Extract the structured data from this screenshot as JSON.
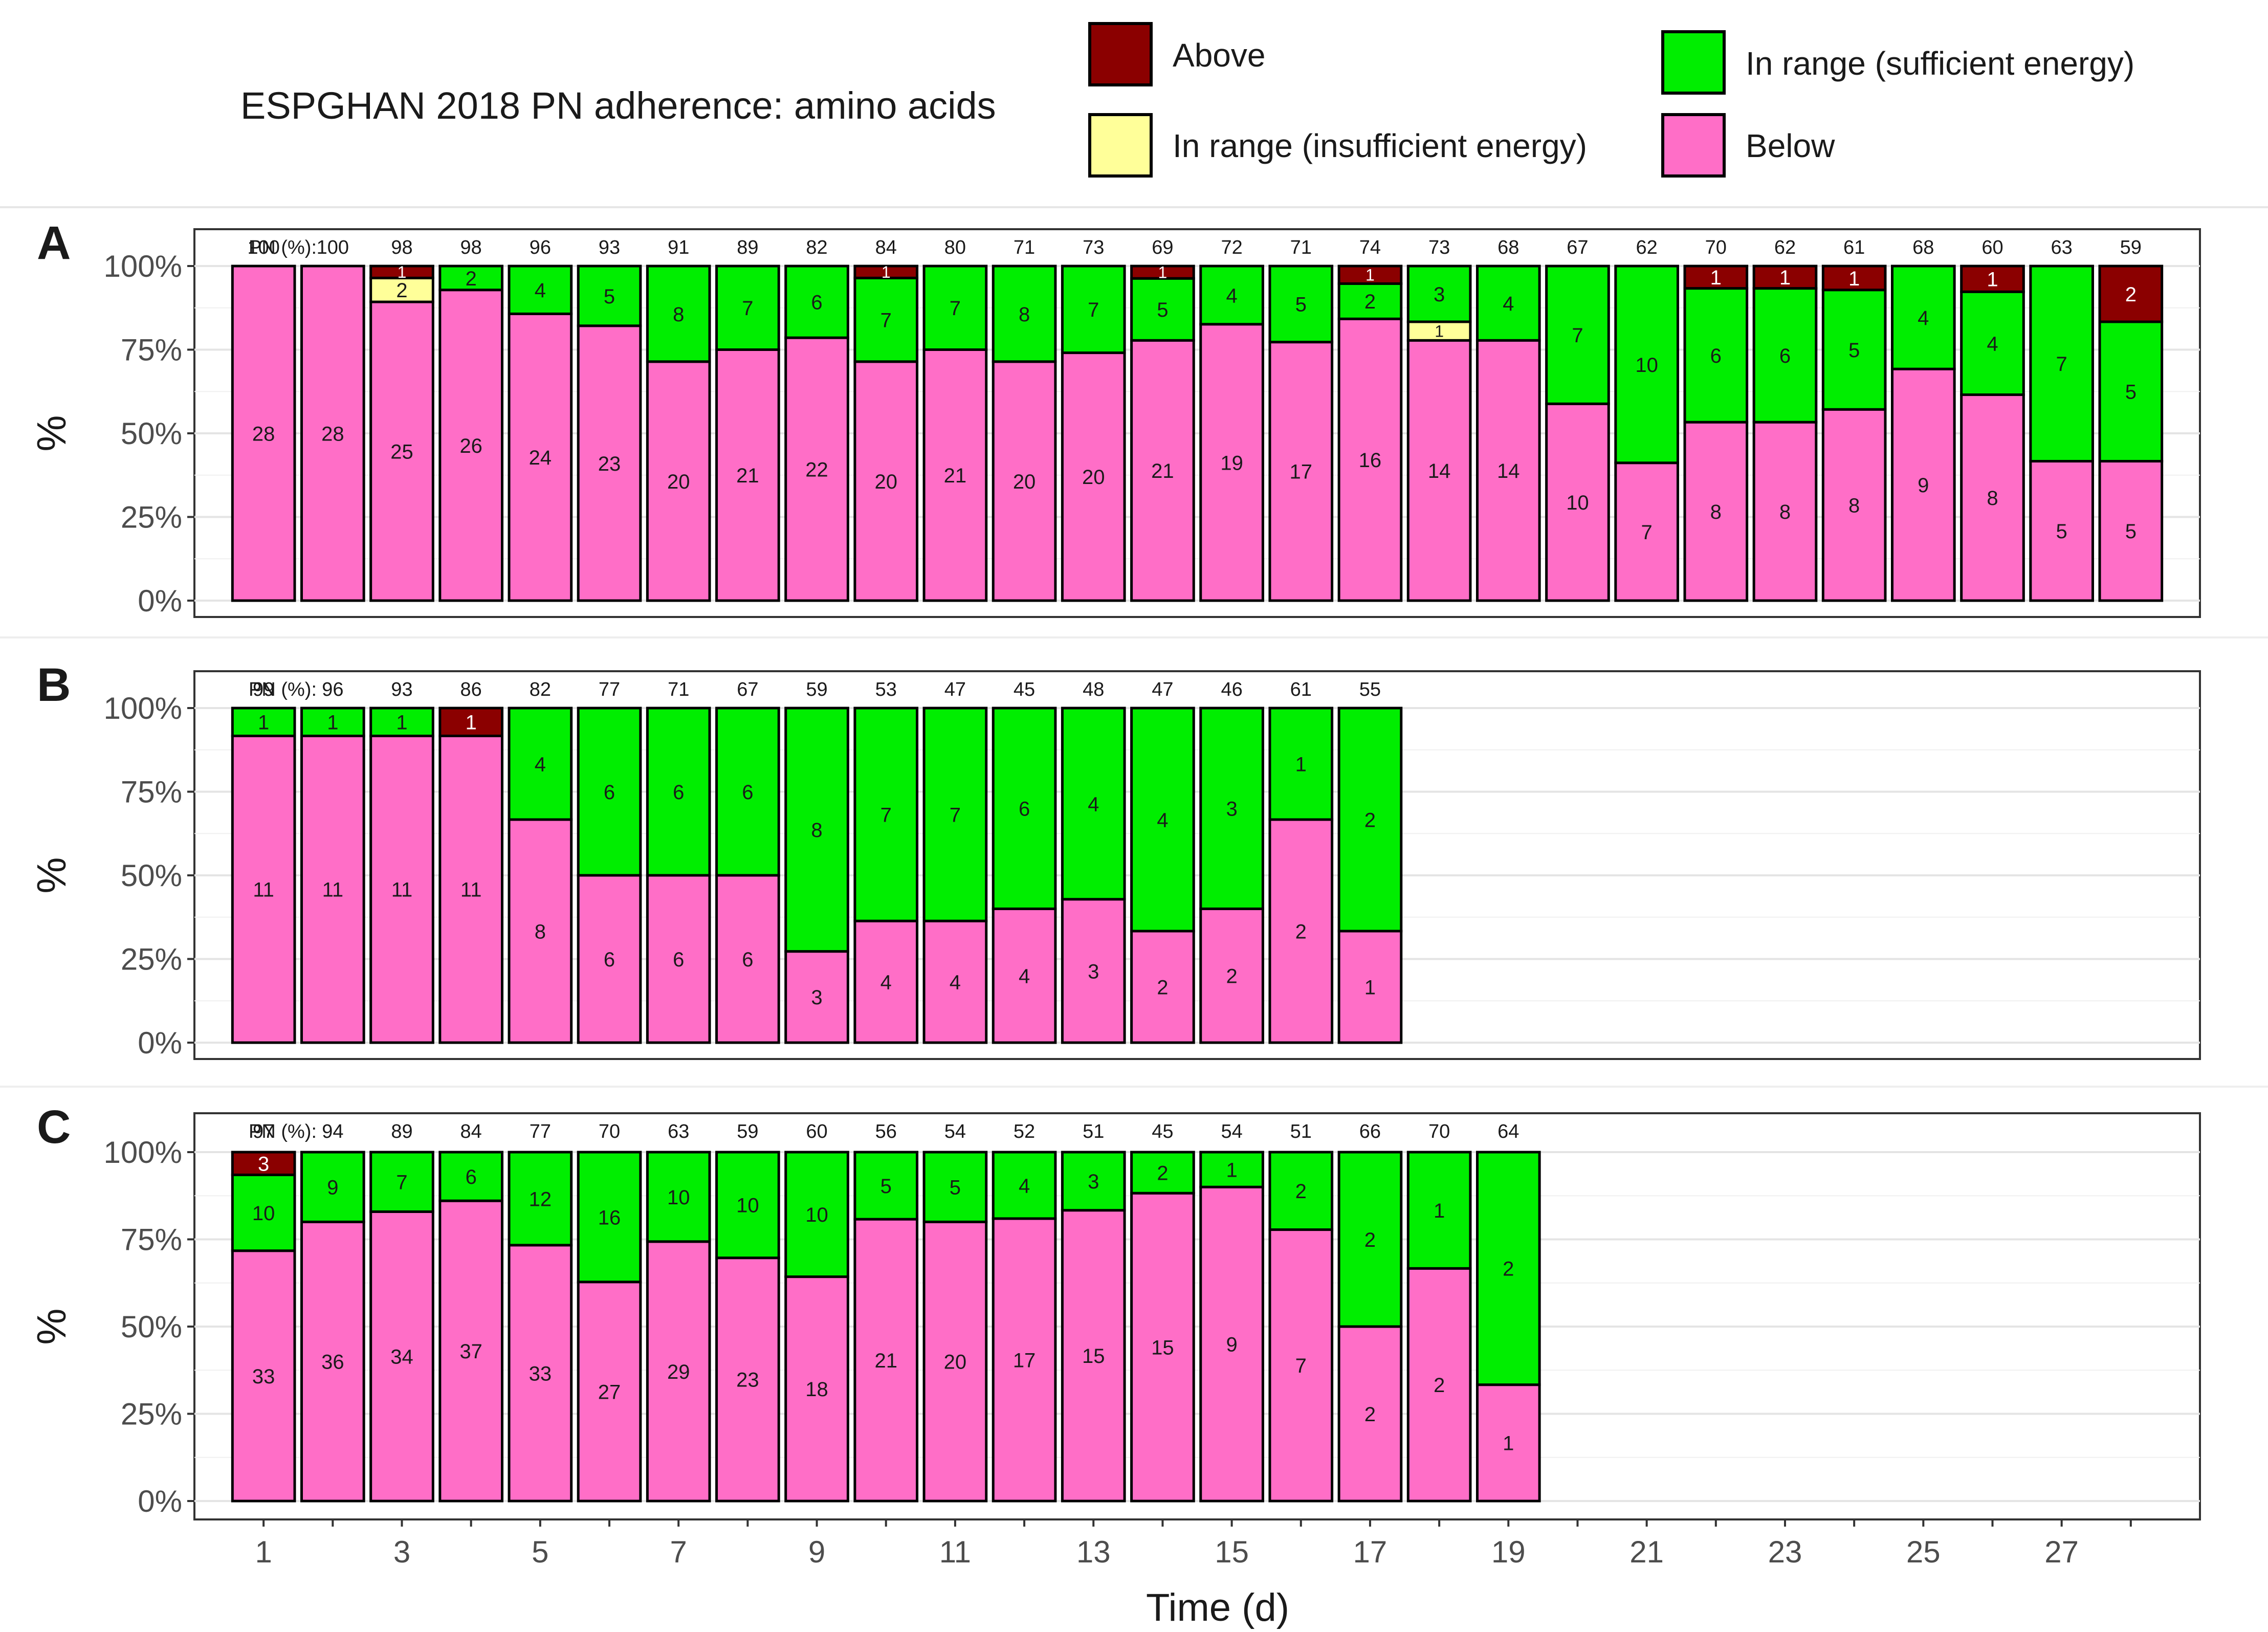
{
  "legend": {
    "title": "ESPGHAN 2018 PN adherence: amino acids",
    "items": [
      {
        "key": "above",
        "label": "Above",
        "color": "#8B0000"
      },
      {
        "key": "in_range_insufficient",
        "label": "In range (insufficient energy)",
        "color": "#FFFF99"
      },
      {
        "key": "in_range_sufficient",
        "label": "In range (sufficient energy)",
        "color": "#00EE00"
      },
      {
        "key": "below",
        "label": "Below",
        "color": "#FF6EC7"
      }
    ]
  },
  "chart_data": {
    "type": "bar",
    "stacked": true,
    "normalized_percent": true,
    "xlabel": "Time (d)",
    "ylabel": "%",
    "pn_row_label": "PN (%):",
    "x_ticks": [
      1,
      3,
      5,
      7,
      9,
      11,
      13,
      15,
      17,
      19,
      21,
      23,
      25,
      27
    ],
    "x_range": [
      0,
      29
    ],
    "y_ticks": [
      "0%",
      "25%",
      "50%",
      "75%",
      "100%"
    ],
    "stack_order": [
      "below",
      "in_range_insufficient",
      "in_range_sufficient",
      "above"
    ],
    "panels": [
      {
        "label": "A",
        "days": [
          1,
          2,
          3,
          4,
          5,
          6,
          7,
          8,
          9,
          10,
          11,
          12,
          13,
          14,
          15,
          16,
          17,
          18,
          19,
          20,
          21,
          22,
          23,
          24,
          25,
          26,
          27,
          28
        ],
        "pn_percent": [
          100,
          100,
          98,
          98,
          96,
          93,
          91,
          89,
          82,
          84,
          80,
          71,
          73,
          69,
          72,
          71,
          74,
          73,
          68,
          67,
          62,
          70,
          62,
          61,
          68,
          60,
          63,
          59
        ],
        "series": [
          {
            "name": "below",
            "values": [
              28,
              28,
              25,
              26,
              24,
              23,
              20,
              21,
              22,
              20,
              21,
              20,
              20,
              21,
              19,
              17,
              16,
              14,
              14,
              10,
              7,
              8,
              8,
              8,
              9,
              8,
              5,
              5
            ]
          },
          {
            "name": "in_range_insufficient",
            "values": [
              0,
              0,
              2,
              0,
              0,
              0,
              0,
              0,
              0,
              0,
              0,
              0,
              0,
              0,
              0,
              0,
              0,
              1,
              0,
              0,
              0,
              0,
              0,
              0,
              0,
              0,
              0,
              0
            ]
          },
          {
            "name": "in_range_sufficient",
            "values": [
              0,
              0,
              0,
              2,
              4,
              5,
              8,
              7,
              6,
              7,
              7,
              8,
              7,
              5,
              4,
              5,
              2,
              3,
              4,
              7,
              10,
              6,
              6,
              5,
              4,
              4,
              7,
              5
            ]
          },
          {
            "name": "above",
            "values": [
              0,
              0,
              1,
              0,
              0,
              0,
              0,
              0,
              0,
              1,
              0,
              0,
              0,
              1,
              0,
              0,
              1,
              0,
              0,
              0,
              0,
              1,
              1,
              1,
              0,
              1,
              0,
              2
            ]
          }
        ]
      },
      {
        "label": "B",
        "days": [
          1,
          2,
          3,
          4,
          5,
          6,
          7,
          8,
          9,
          10,
          11,
          12,
          13,
          14,
          15,
          16,
          17
        ],
        "pn_percent": [
          99,
          96,
          93,
          86,
          82,
          77,
          71,
          67,
          59,
          53,
          47,
          45,
          48,
          47,
          46,
          61,
          55
        ],
        "series": [
          {
            "name": "below",
            "values": [
              11,
              11,
              11,
              11,
              8,
              6,
              6,
              6,
              3,
              4,
              4,
              4,
              3,
              2,
              2,
              2,
              1
            ]
          },
          {
            "name": "in_range_insufficient",
            "values": [
              0,
              0,
              0,
              0,
              0,
              0,
              0,
              0,
              0,
              0,
              0,
              0,
              0,
              0,
              0,
              0,
              0
            ]
          },
          {
            "name": "in_range_sufficient",
            "values": [
              1,
              1,
              1,
              0,
              4,
              6,
              6,
              6,
              8,
              7,
              7,
              6,
              4,
              4,
              3,
              1,
              2
            ]
          },
          {
            "name": "above",
            "values": [
              0,
              0,
              0,
              1,
              0,
              0,
              0,
              0,
              0,
              0,
              0,
              0,
              0,
              0,
              0,
              0,
              0
            ]
          }
        ]
      },
      {
        "label": "C",
        "days": [
          1,
          2,
          3,
          4,
          5,
          6,
          7,
          8,
          9,
          10,
          11,
          12,
          13,
          14,
          15,
          16,
          17,
          18,
          19
        ],
        "pn_percent": [
          97,
          94,
          89,
          84,
          77,
          70,
          63,
          59,
          60,
          56,
          54,
          52,
          51,
          45,
          54,
          51,
          66,
          70,
          64
        ],
        "series": [
          {
            "name": "below",
            "values": [
              33,
              36,
              34,
              37,
              33,
              27,
              29,
              23,
              18,
              21,
              20,
              17,
              15,
              15,
              9,
              7,
              2,
              2,
              1
            ]
          },
          {
            "name": "in_range_insufficient",
            "values": [
              0,
              0,
              0,
              0,
              0,
              0,
              0,
              0,
              0,
              0,
              0,
              0,
              0,
              0,
              0,
              0,
              0,
              0,
              0
            ]
          },
          {
            "name": "in_range_sufficient",
            "values": [
              10,
              9,
              7,
              6,
              12,
              16,
              10,
              10,
              10,
              5,
              5,
              4,
              3,
              2,
              1,
              2,
              2,
              1,
              2
            ]
          },
          {
            "name": "above",
            "values": [
              3,
              0,
              0,
              0,
              0,
              0,
              0,
              0,
              0,
              0,
              0,
              0,
              0,
              0,
              0,
              0,
              0,
              0,
              0
            ]
          }
        ]
      }
    ]
  }
}
